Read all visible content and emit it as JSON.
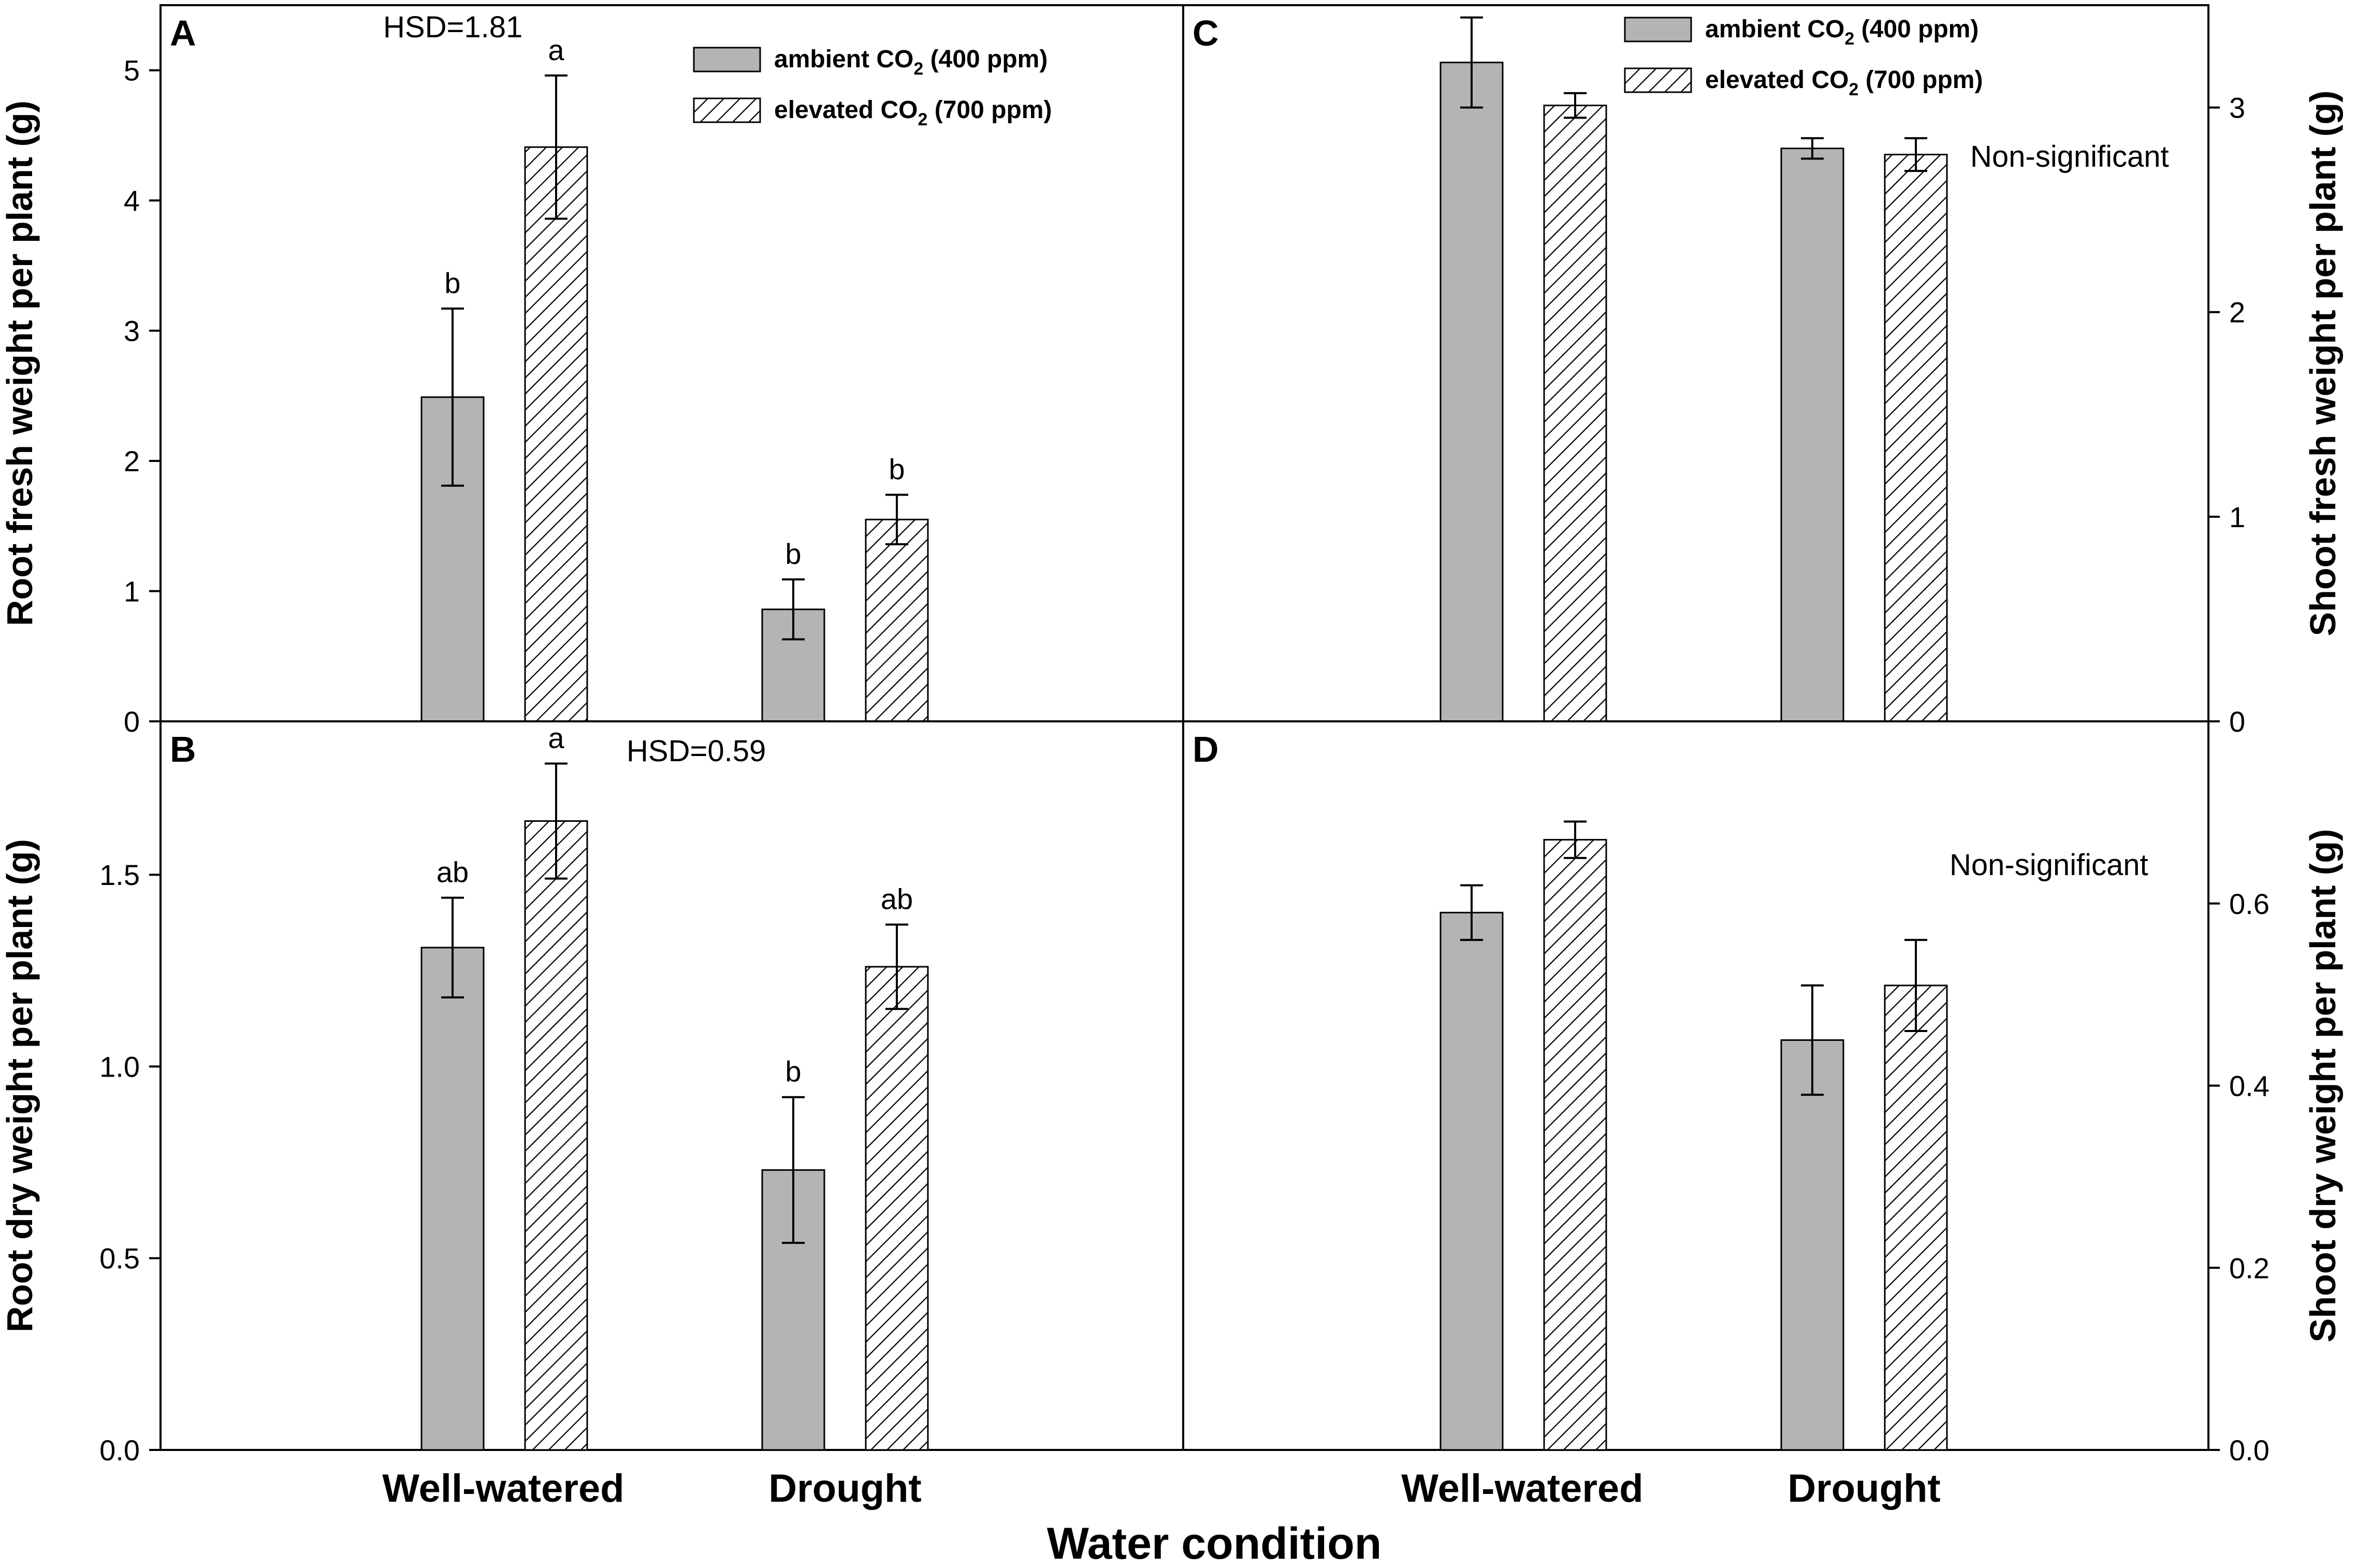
{
  "figure": {
    "xlabel": "Water condition",
    "categories": [
      "Well-watered",
      "Drought"
    ],
    "legend": {
      "ambient": {
        "pre": "ambient CO",
        "sub": "2",
        "post": " (400 ppm)"
      },
      "elevated": {
        "pre": "elevated CO",
        "sub": "2",
        "post": " (700 ppm)"
      }
    },
    "colors": {
      "ambient": "#b4b4b4",
      "elevated_hatch": "#000000",
      "frame": "#000000"
    }
  },
  "chart_data": [
    {
      "panel": "A",
      "type": "bar",
      "title": "",
      "ylabel": "Root fresh weight per plant (g)",
      "ylim": [
        0,
        5.5
      ],
      "yticks": [
        "0",
        "1",
        "2",
        "3",
        "4",
        "5"
      ],
      "yaxis_side": "left",
      "annotation": "HSD=1.81",
      "categories": [
        "Well-watered",
        "Drought"
      ],
      "series": [
        {
          "name": "ambient CO2 (400 ppm)",
          "values": [
            2.49,
            0.86
          ],
          "errors": [
            0.68,
            0.23
          ],
          "letters": [
            "b",
            "b"
          ]
        },
        {
          "name": "elevated CO2 (700 ppm)",
          "values": [
            4.41,
            1.55
          ],
          "errors": [
            0.55,
            0.19
          ],
          "letters": [
            "a",
            "b"
          ]
        }
      ]
    },
    {
      "panel": "B",
      "type": "bar",
      "title": "",
      "ylabel": "Root dry weight per plant (g)",
      "ylim": [
        0,
        1.9
      ],
      "yticks": [
        "0.0",
        "0.5",
        "1.0",
        "1.5"
      ],
      "yaxis_side": "left",
      "annotation": "HSD=0.59",
      "categories": [
        "Well-watered",
        "Drought"
      ],
      "series": [
        {
          "name": "ambient CO2 (400 ppm)",
          "values": [
            1.31,
            0.73
          ],
          "errors": [
            0.13,
            0.19
          ],
          "letters": [
            "ab",
            "b"
          ]
        },
        {
          "name": "elevated CO2 (700 ppm)",
          "values": [
            1.64,
            1.26
          ],
          "errors": [
            0.15,
            0.11
          ],
          "letters": [
            "a",
            "ab"
          ]
        }
      ]
    },
    {
      "panel": "C",
      "type": "bar",
      "title": "",
      "ylabel": "Shoot fresh weight per plant (g)",
      "ylim": [
        0,
        3.5
      ],
      "yticks": [
        "0",
        "1",
        "2",
        "3"
      ],
      "yaxis_side": "right",
      "annotation": "Non-significant",
      "categories": [
        "Well-watered",
        "Drought"
      ],
      "series": [
        {
          "name": "ambient CO2 (400 ppm)",
          "values": [
            3.22,
            2.8
          ],
          "errors": [
            0.22,
            0.05
          ],
          "letters": [
            "",
            ""
          ]
        },
        {
          "name": "elevated CO2 (700 ppm)",
          "values": [
            3.01,
            2.77
          ],
          "errors": [
            0.06,
            0.08
          ],
          "letters": [
            "",
            ""
          ]
        }
      ]
    },
    {
      "panel": "D",
      "type": "bar",
      "title": "",
      "ylabel": "Shoot dry weight per plant (g)",
      "ylim": [
        0,
        0.8
      ],
      "yticks": [
        "0.0",
        "0.2",
        "0.4",
        "0.6"
      ],
      "yaxis_side": "right",
      "annotation": "Non-significant",
      "categories": [
        "Well-watered",
        "Drought"
      ],
      "series": [
        {
          "name": "ambient CO2 (400 ppm)",
          "values": [
            0.59,
            0.45
          ],
          "errors": [
            0.03,
            0.06
          ],
          "letters": [
            "",
            ""
          ]
        },
        {
          "name": "elevated CO2 (700 ppm)",
          "values": [
            0.67,
            0.51
          ],
          "errors": [
            0.02,
            0.05
          ],
          "letters": [
            "",
            ""
          ]
        }
      ]
    }
  ]
}
